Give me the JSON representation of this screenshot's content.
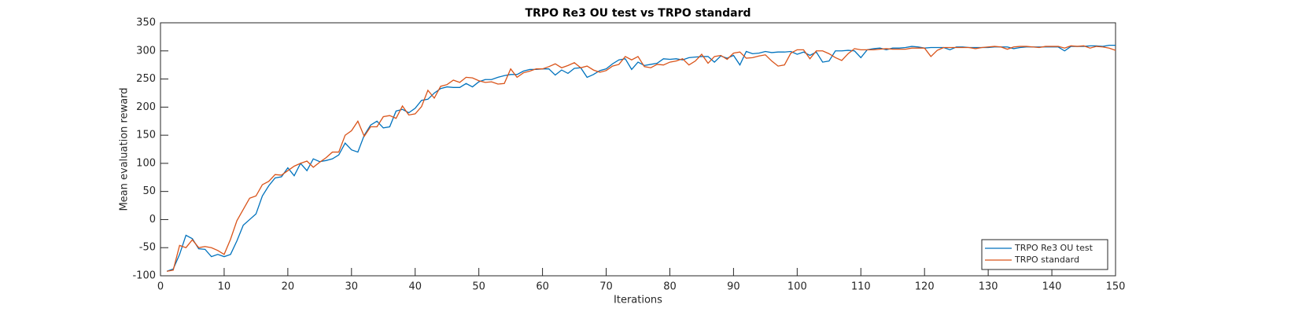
{
  "chart_data": {
    "type": "line",
    "title": "TRPO Re3 OU test vs TRPO standard",
    "xlabel": "Iterations",
    "ylabel": "Mean evaluation reward",
    "x": [
      1,
      2,
      3,
      4,
      5,
      6,
      7,
      8,
      9,
      10,
      11,
      12,
      13,
      14,
      15,
      16,
      17,
      18,
      19,
      20,
      21,
      22,
      23,
      24,
      25,
      26,
      27,
      28,
      29,
      30,
      31,
      32,
      33,
      34,
      35,
      36,
      37,
      38,
      39,
      40,
      41,
      42,
      43,
      44,
      45,
      46,
      47,
      48,
      49,
      50,
      51,
      52,
      53,
      54,
      55,
      56,
      57,
      58,
      59,
      60,
      61,
      62,
      63,
      64,
      65,
      66,
      67,
      68,
      69,
      70,
      71,
      72,
      73,
      74,
      75,
      76,
      77,
      78,
      79,
      80,
      81,
      82,
      83,
      84,
      85,
      86,
      87,
      88,
      89,
      90,
      91,
      92,
      93,
      94,
      95,
      96,
      97,
      98,
      99,
      100,
      101,
      102,
      103,
      104,
      105,
      106,
      107,
      108,
      109,
      110,
      111,
      112,
      113,
      114,
      115,
      116,
      117,
      118,
      119,
      120,
      121,
      122,
      123,
      124,
      125,
      126,
      127,
      128,
      129,
      130,
      131,
      132,
      133,
      134,
      135,
      136,
      137,
      138,
      139,
      140,
      141,
      142,
      143,
      144,
      145,
      146,
      147,
      148,
      149,
      150
    ],
    "series": [
      {
        "name": "TRPO Re3 OU test",
        "color": "#0072bd",
        "values": [
          -92,
          -88,
          -62,
          -28,
          -34,
          -52,
          -53,
          -66,
          -62,
          -66,
          -62,
          -38,
          -10,
          0,
          10,
          42,
          60,
          74,
          76,
          92,
          78,
          100,
          87,
          108,
          103,
          105,
          108,
          115,
          136,
          124,
          120,
          150,
          168,
          175,
          163,
          165,
          193,
          196,
          190,
          198,
          212,
          214,
          225,
          233,
          236,
          235,
          235,
          242,
          236,
          245,
          249,
          249,
          253,
          256,
          258,
          258,
          264,
          267,
          267,
          268,
          268,
          257,
          266,
          260,
          269,
          270,
          253,
          258,
          265,
          268,
          277,
          284,
          286,
          267,
          280,
          274,
          276,
          278,
          286,
          285,
          286,
          284,
          288,
          289,
          290,
          290,
          280,
          291,
          287,
          292,
          275,
          299,
          295,
          296,
          299,
          297,
          298,
          298,
          299,
          294,
          298,
          292,
          298,
          280,
          282,
          300,
          300,
          301,
          300,
          288,
          302,
          304,
          305,
          302,
          305,
          305,
          306,
          308,
          307,
          305,
          306,
          306,
          306,
          302,
          307,
          307,
          306,
          306,
          306,
          306,
          307,
          307,
          307,
          304,
          306,
          307,
          307,
          307,
          307,
          307,
          307,
          300,
          308,
          308,
          308,
          309,
          309,
          308,
          310,
          310
        ]
      },
      {
        "name": "TRPO standard",
        "color": "#d95319",
        "values": [
          -92,
          -90,
          -46,
          -50,
          -36,
          -50,
          -48,
          -50,
          -55,
          -62,
          -35,
          -2,
          18,
          38,
          42,
          62,
          68,
          80,
          79,
          87,
          95,
          100,
          104,
          93,
          102,
          110,
          120,
          120,
          150,
          158,
          175,
          148,
          165,
          165,
          183,
          185,
          180,
          202,
          186,
          188,
          201,
          230,
          216,
          237,
          240,
          248,
          244,
          253,
          252,
          247,
          244,
          245,
          241,
          242,
          268,
          253,
          261,
          264,
          268,
          268,
          272,
          277,
          270,
          274,
          279,
          270,
          273,
          266,
          262,
          265,
          273,
          276,
          290,
          284,
          290,
          272,
          270,
          276,
          275,
          280,
          282,
          286,
          275,
          282,
          294,
          278,
          290,
          292,
          285,
          296,
          298,
          287,
          288,
          291,
          293,
          282,
          273,
          275,
          296,
          302,
          302,
          286,
          300,
          300,
          295,
          288,
          283,
          295,
          304,
          302,
          302,
          302,
          303,
          304,
          303,
          303,
          303,
          305,
          305,
          305,
          290,
          301,
          306,
          306,
          306,
          306,
          306,
          304,
          306,
          307,
          308,
          307,
          303,
          307,
          308,
          308,
          307,
          306,
          308,
          308,
          308,
          305,
          309,
          308,
          309,
          305,
          308,
          307,
          305,
          301
        ]
      }
    ],
    "xlim": [
      0,
      150
    ],
    "xticks": [
      0,
      10,
      20,
      30,
      40,
      50,
      60,
      70,
      80,
      90,
      100,
      110,
      120,
      130,
      140,
      150
    ],
    "ylim": [
      -100,
      350
    ],
    "yticks": [
      -100,
      -50,
      0,
      50,
      100,
      150,
      200,
      250,
      300,
      350
    ],
    "grid": false,
    "legend": "lower-right"
  }
}
